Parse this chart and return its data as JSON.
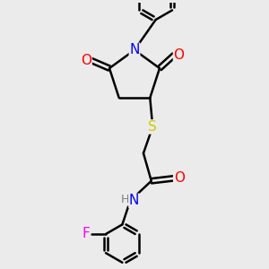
{
  "bg_color": "#ebebeb",
  "bond_color": "#000000",
  "bond_width": 1.8,
  "atom_colors": {
    "N": "#0000ff",
    "O": "#ff0000",
    "S": "#cccc00",
    "F": "#ff00ff",
    "C": "#000000",
    "H": "#808080"
  },
  "font_size": 10,
  "figsize": [
    3.0,
    3.0
  ],
  "dpi": 100,
  "xlim": [
    0,
    10
  ],
  "ylim": [
    0,
    10
  ]
}
